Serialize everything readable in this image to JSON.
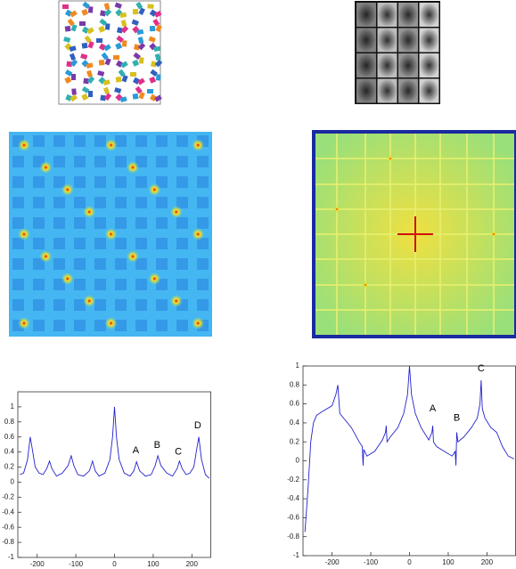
{
  "chart_data": [
    {
      "type": "line",
      "x": [
        -245,
        -235,
        -225,
        -218,
        -213,
        -205,
        -195,
        -185,
        -175,
        -168,
        -162,
        -150,
        -135,
        -120,
        -112,
        -105,
        -95,
        -80,
        -65,
        -57,
        -50,
        -40,
        -25,
        -12,
        -5,
        0,
        5,
        12,
        25,
        40,
        50,
        57,
        65,
        80,
        95,
        105,
        112,
        120,
        135,
        150,
        162,
        168,
        175,
        185,
        195,
        205,
        213,
        218,
        225,
        235,
        245
      ],
      "series": [
        {
          "color": "#2222cc",
          "values": [
            0.1,
            0.12,
            0.3,
            0.6,
            0.45,
            0.2,
            0.12,
            0.1,
            0.18,
            0.28,
            0.18,
            0.08,
            0.12,
            0.22,
            0.35,
            0.22,
            0.1,
            0.08,
            0.15,
            0.28,
            0.15,
            0.08,
            0.12,
            0.3,
            0.6,
            1.0,
            0.6,
            0.3,
            0.12,
            0.08,
            0.15,
            0.27,
            0.15,
            0.08,
            0.1,
            0.22,
            0.35,
            0.22,
            0.12,
            0.08,
            0.18,
            0.28,
            0.18,
            0.1,
            0.12,
            0.2,
            0.45,
            0.6,
            0.3,
            0.1,
            0.05
          ]
        }
      ],
      "xlim": [
        -250,
        250
      ],
      "xticks": [
        -200,
        -100,
        0,
        100,
        200
      ],
      "ylim": [
        -1,
        1.2
      ],
      "yticks": [
        -1,
        -0.8,
        -0.6,
        -0.4,
        -0.2,
        0,
        0.2,
        0.4,
        0.6,
        0.8,
        1
      ],
      "annotations": [
        {
          "text": "A",
          "x": 55,
          "y": 0.42
        },
        {
          "text": "B",
          "x": 110,
          "y": 0.49
        },
        {
          "text": "C",
          "x": 165,
          "y": 0.4
        },
        {
          "text": "D",
          "x": 215,
          "y": 0.75
        }
      ]
    },
    {
      "type": "line",
      "x": [
        -270,
        -262,
        -255,
        -248,
        -240,
        -225,
        -200,
        -190,
        -185,
        -180,
        -170,
        -150,
        -130,
        -122,
        -120,
        -118,
        -110,
        -90,
        -70,
        -62,
        -60,
        -58,
        -50,
        -30,
        -15,
        -5,
        0,
        5,
        15,
        30,
        50,
        58,
        60,
        62,
        70,
        90,
        110,
        118,
        120,
        122,
        125,
        140,
        160,
        175,
        182,
        185,
        188,
        195,
        210,
        225,
        240,
        255,
        270
      ],
      "series": [
        {
          "color": "#2222cc",
          "values": [
            -0.75,
            -0.3,
            0.2,
            0.4,
            0.48,
            0.52,
            0.58,
            0.7,
            0.8,
            0.5,
            0.45,
            0.35,
            0.2,
            0.15,
            -0.05,
            0.12,
            0.05,
            0.1,
            0.22,
            0.3,
            0.37,
            0.2,
            0.25,
            0.35,
            0.5,
            0.7,
            1.0,
            0.7,
            0.5,
            0.35,
            0.22,
            0.3,
            0.37,
            0.2,
            0.15,
            0.1,
            0.05,
            0.1,
            -0.05,
            0.3,
            0.2,
            0.25,
            0.35,
            0.45,
            0.6,
            0.85,
            0.55,
            0.45,
            0.35,
            0.3,
            0.15,
            0.05,
            0.02
          ]
        }
      ],
      "xlim": [
        -275,
        275
      ],
      "xticks": [
        -200,
        -100,
        0,
        100,
        200
      ],
      "ylim": [
        -1,
        1
      ],
      "yticks": [
        -1,
        -0.8,
        -0.6,
        -0.4,
        -0.2,
        0,
        0.2,
        0.4,
        0.6,
        0.8,
        1
      ],
      "annotations": [
        {
          "text": "A",
          "x": 60,
          "y": 0.55
        },
        {
          "text": "B",
          "x": 122,
          "y": 0.45
        },
        {
          "text": "C",
          "x": 185,
          "y": 0.97
        }
      ]
    }
  ]
}
